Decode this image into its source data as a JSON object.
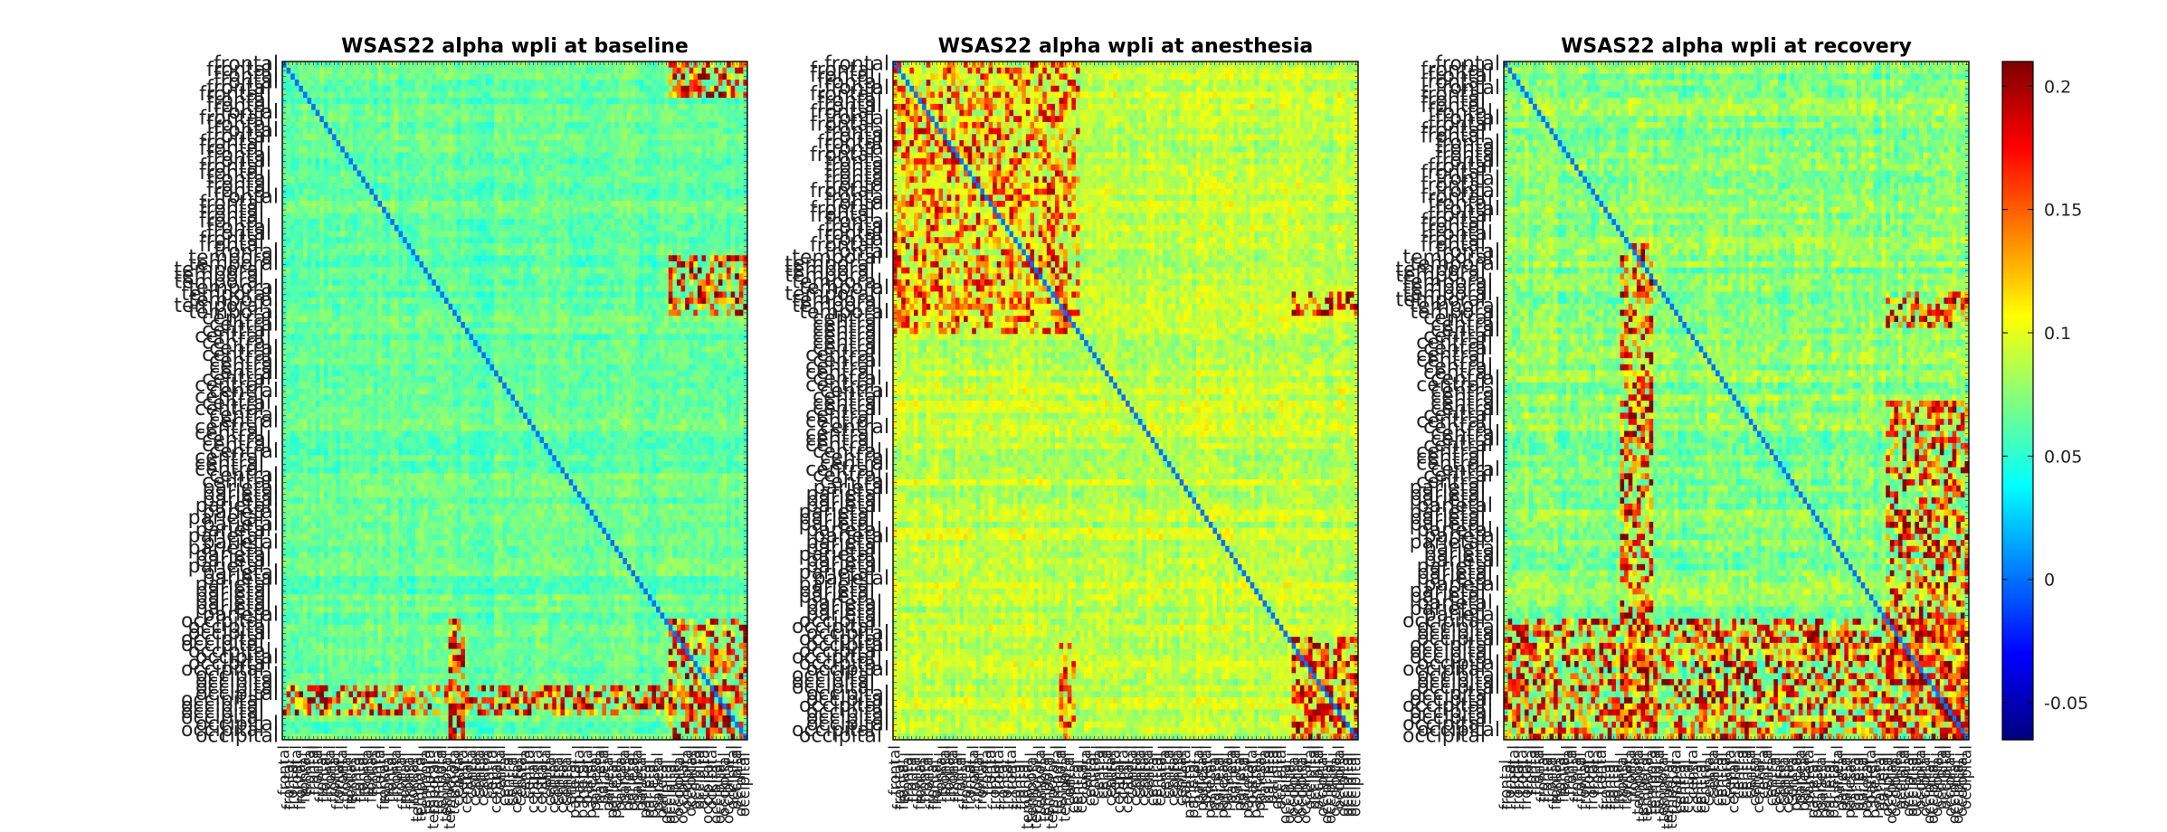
{
  "chart_data": [
    {
      "type": "heatmap",
      "title": "WSAS22 alpha wpli at baseline",
      "condition": "baseline",
      "n_channels": 112,
      "region_blocks": [
        {
          "region": "frontal",
          "channels": 32
        },
        {
          "region": "temporal",
          "channels": 10
        },
        {
          "region": "central",
          "channels": 28
        },
        {
          "region": "parietal",
          "channels": 22
        },
        {
          "region": "occipital",
          "channels": 20
        }
      ],
      "tick_labels": [
        "frontal",
        "temporal",
        "central",
        "parietal",
        "occipital"
      ],
      "diagonal_value": 0.0,
      "background_range": [
        0.04,
        0.09
      ],
      "hotspots": [
        {
          "rows": [
            0,
            6
          ],
          "cols": [
            93,
            112
          ],
          "range": [
            0.1,
            0.22
          ]
        },
        {
          "rows": [
            32,
            42
          ],
          "cols": [
            93,
            112
          ],
          "range": [
            0.1,
            0.22
          ]
        },
        {
          "rows": [
            92,
            112
          ],
          "cols": [
            93,
            112
          ],
          "range": [
            0.1,
            0.22
          ]
        },
        {
          "rows": [
            103,
            108
          ],
          "cols": [
            0,
            112
          ],
          "range": [
            0.1,
            0.22
          ]
        },
        {
          "rows": [
            92,
            112
          ],
          "cols": [
            40,
            44
          ],
          "range": [
            0.1,
            0.22
          ]
        }
      ]
    },
    {
      "type": "heatmap",
      "title": "WSAS22 alpha wpli at anesthesia",
      "condition": "anesthesia",
      "n_channels": 112,
      "region_blocks": [
        {
          "region": "frontal",
          "channels": 32
        },
        {
          "region": "temporal",
          "channels": 10
        },
        {
          "region": "central",
          "channels": 28
        },
        {
          "region": "parietal",
          "channels": 22
        },
        {
          "region": "occipital",
          "channels": 20
        }
      ],
      "tick_labels": [
        "frontal",
        "temporal",
        "central",
        "parietal",
        "occipital"
      ],
      "diagonal_value": 0.0,
      "background_range": [
        0.06,
        0.12
      ],
      "hotspots": [
        {
          "rows": [
            0,
            45
          ],
          "cols": [
            0,
            45
          ],
          "range": [
            0.1,
            0.2
          ]
        },
        {
          "rows": [
            95,
            112
          ],
          "cols": [
            96,
            112
          ],
          "range": [
            0.12,
            0.22
          ]
        },
        {
          "rows": [
            38,
            42
          ],
          "cols": [
            96,
            112
          ],
          "range": [
            0.12,
            0.22
          ]
        },
        {
          "rows": [
            96,
            112
          ],
          "cols": [
            40,
            44
          ],
          "range": [
            0.1,
            0.2
          ]
        }
      ]
    },
    {
      "type": "heatmap",
      "title": "WSAS22 alpha wpli at recovery",
      "condition": "recovery",
      "n_channels": 112,
      "region_blocks": [
        {
          "region": "frontal",
          "channels": 32
        },
        {
          "region": "temporal",
          "channels": 10
        },
        {
          "region": "central",
          "channels": 28
        },
        {
          "region": "parietal",
          "channels": 22
        },
        {
          "region": "occipital",
          "channels": 20
        }
      ],
      "tick_labels": [
        "frontal",
        "temporal",
        "central",
        "parietal",
        "occipital"
      ],
      "diagonal_value": 0.0,
      "background_range": [
        0.04,
        0.11
      ],
      "hotspots": [
        {
          "rows": [
            30,
            112
          ],
          "cols": [
            28,
            36
          ],
          "range": [
            0.1,
            0.22
          ]
        },
        {
          "rows": [
            56,
            112
          ],
          "cols": [
            92,
            112
          ],
          "range": [
            0.1,
            0.22
          ]
        },
        {
          "rows": [
            38,
            44
          ],
          "cols": [
            92,
            112
          ],
          "range": [
            0.1,
            0.22
          ]
        },
        {
          "rows": [
            92,
            112
          ],
          "cols": [
            0,
            112
          ],
          "range": [
            0.1,
            0.22
          ]
        }
      ]
    }
  ],
  "colorbar": {
    "colormap": "jet",
    "clim": [
      -0.065,
      0.21
    ],
    "ticks": [
      {
        "value": -0.05,
        "label": "-0.05"
      },
      {
        "value": 0,
        "label": "0"
      },
      {
        "value": 0.05,
        "label": "0.05"
      },
      {
        "value": 0.1,
        "label": "0.1"
      },
      {
        "value": 0.15,
        "label": "0.15"
      },
      {
        "value": 0.2,
        "label": "0.2"
      }
    ]
  }
}
